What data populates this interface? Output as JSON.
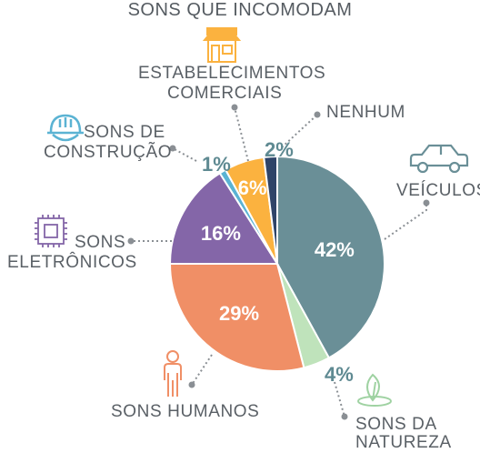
{
  "title": "SONS QUE INCOMODAM",
  "colors": {
    "veiculos": "#6a8f97",
    "natureza": "#bfe3bb",
    "humanos": "#f08f66",
    "eletronicos": "#8466a8",
    "construcao": "#5bb3d3",
    "comerciais": "#fbb23f",
    "nenhum": "#2f4468",
    "text": "#5a6066",
    "leader": "#8a8f94"
  },
  "chart_data": {
    "type": "pie",
    "title": "SONS QUE INCOMODAM",
    "slices": [
      {
        "label": "VEÍCULOS",
        "value": 42,
        "display": "42%",
        "icon": "car-icon",
        "color": "#6a8f97"
      },
      {
        "label": "SONS DA NATUREZA",
        "value": 4,
        "display": "4%",
        "icon": "leaf-icon",
        "color": "#bfe3bb"
      },
      {
        "label": "SONS HUMANOS",
        "value": 29,
        "display": "29%",
        "icon": "person-icon",
        "color": "#f08f66"
      },
      {
        "label": "SONS ELETRÔNICOS",
        "value": 16,
        "display": "16%",
        "icon": "chip-icon",
        "color": "#8466a8"
      },
      {
        "label": "SONS DE CONSTRUÇÃO",
        "value": 1,
        "display": "1%",
        "icon": "hardhat-icon",
        "color": "#5bb3d3"
      },
      {
        "label": "ESTABELECIMENTOS COMERCIAIS",
        "value": 6,
        "display": "6%",
        "icon": "storefront-icon",
        "color": "#fbb23f"
      },
      {
        "label": "NENHUM",
        "value": 2,
        "display": "2%",
        "icon": "none",
        "color": "#2f4468"
      }
    ]
  },
  "labels": {
    "veiculos": "VEÍCULOS",
    "natureza_1": "SONS DA",
    "natureza_2": "NATUREZA",
    "humanos": "SONS HUMANOS",
    "eletronicos_1": "SONS",
    "eletronicos_2": "ELETRÔNICOS",
    "construcao_1": "SONS DE",
    "construcao_2": "CONSTRUÇÃO",
    "comerciais_1": "ESTABELECIMENTOS",
    "comerciais_2": "COMERCIAIS",
    "nenhum": "NENHUM"
  }
}
